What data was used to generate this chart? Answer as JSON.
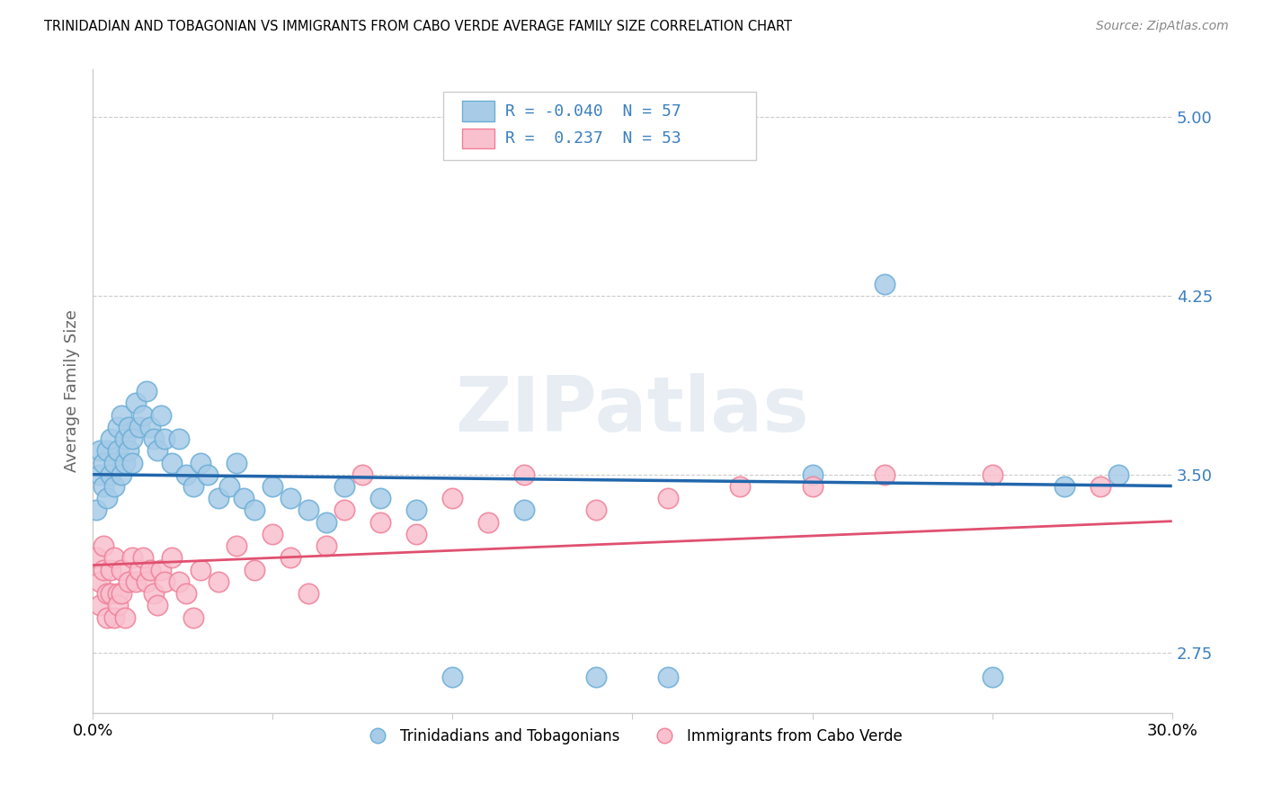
{
  "title": "TRINIDADIAN AND TOBAGONIAN VS IMMIGRANTS FROM CABO VERDE AVERAGE FAMILY SIZE CORRELATION CHART",
  "source": "Source: ZipAtlas.com",
  "ylabel": "Average Family Size",
  "xlim": [
    0.0,
    0.3
  ],
  "ylim": [
    2.5,
    5.2
  ],
  "yticks": [
    2.75,
    3.5,
    4.25,
    5.0
  ],
  "xticks": [
    0.0,
    0.05,
    0.1,
    0.15,
    0.2,
    0.25,
    0.3
  ],
  "xticklabels": [
    "0.0%",
    "",
    "",
    "",
    "",
    "",
    "30.0%"
  ],
  "blue_R": -0.04,
  "blue_N": 57,
  "pink_R": 0.237,
  "pink_N": 53,
  "blue_color": "#a8cce8",
  "blue_edge_color": "#6baed6",
  "pink_color": "#f9c0ce",
  "pink_edge_color": "#f08099",
  "blue_line_color": "#2166ac",
  "pink_line_color": "#e05070",
  "legend_blue_label": "Trinidadians and Tobagonians",
  "legend_pink_label": "Immigrants from Cabo Verde",
  "watermark": "ZIPatlas",
  "blue_scatter_x": [
    0.001,
    0.002,
    0.002,
    0.003,
    0.003,
    0.004,
    0.004,
    0.005,
    0.005,
    0.006,
    0.006,
    0.007,
    0.007,
    0.008,
    0.008,
    0.009,
    0.009,
    0.01,
    0.01,
    0.011,
    0.011,
    0.012,
    0.013,
    0.014,
    0.015,
    0.016,
    0.017,
    0.018,
    0.019,
    0.02,
    0.022,
    0.024,
    0.026,
    0.028,
    0.03,
    0.032,
    0.035,
    0.038,
    0.04,
    0.042,
    0.045,
    0.05,
    0.055,
    0.06,
    0.065,
    0.07,
    0.08,
    0.09,
    0.1,
    0.12,
    0.14,
    0.16,
    0.2,
    0.22,
    0.25,
    0.27,
    0.285
  ],
  "blue_scatter_y": [
    3.35,
    3.5,
    3.6,
    3.45,
    3.55,
    3.4,
    3.6,
    3.5,
    3.65,
    3.45,
    3.55,
    3.7,
    3.6,
    3.75,
    3.5,
    3.65,
    3.55,
    3.7,
    3.6,
    3.55,
    3.65,
    3.8,
    3.7,
    3.75,
    3.85,
    3.7,
    3.65,
    3.6,
    3.75,
    3.65,
    3.55,
    3.65,
    3.5,
    3.45,
    3.55,
    3.5,
    3.4,
    3.45,
    3.55,
    3.4,
    3.35,
    3.45,
    3.4,
    3.35,
    3.3,
    3.45,
    3.4,
    3.35,
    2.65,
    3.35,
    2.65,
    2.65,
    3.5,
    4.3,
    2.65,
    3.45,
    3.5
  ],
  "pink_scatter_x": [
    0.001,
    0.002,
    0.002,
    0.003,
    0.003,
    0.004,
    0.004,
    0.005,
    0.005,
    0.006,
    0.006,
    0.007,
    0.007,
    0.008,
    0.008,
    0.009,
    0.01,
    0.011,
    0.012,
    0.013,
    0.014,
    0.015,
    0.016,
    0.017,
    0.018,
    0.019,
    0.02,
    0.022,
    0.024,
    0.026,
    0.028,
    0.03,
    0.035,
    0.04,
    0.045,
    0.05,
    0.055,
    0.06,
    0.065,
    0.07,
    0.075,
    0.08,
    0.09,
    0.1,
    0.11,
    0.12,
    0.14,
    0.16,
    0.18,
    0.2,
    0.22,
    0.25,
    0.28
  ],
  "pink_scatter_y": [
    3.15,
    3.05,
    2.95,
    3.2,
    3.1,
    3.0,
    2.9,
    3.1,
    3.0,
    2.9,
    3.15,
    3.0,
    2.95,
    3.1,
    3.0,
    2.9,
    3.05,
    3.15,
    3.05,
    3.1,
    3.15,
    3.05,
    3.1,
    3.0,
    2.95,
    3.1,
    3.05,
    3.15,
    3.05,
    3.0,
    2.9,
    3.1,
    3.05,
    3.2,
    3.1,
    3.25,
    3.15,
    3.0,
    3.2,
    3.35,
    3.5,
    3.3,
    3.25,
    3.4,
    3.3,
    3.5,
    3.35,
    3.4,
    3.45,
    3.45,
    3.5,
    3.5,
    3.45
  ]
}
